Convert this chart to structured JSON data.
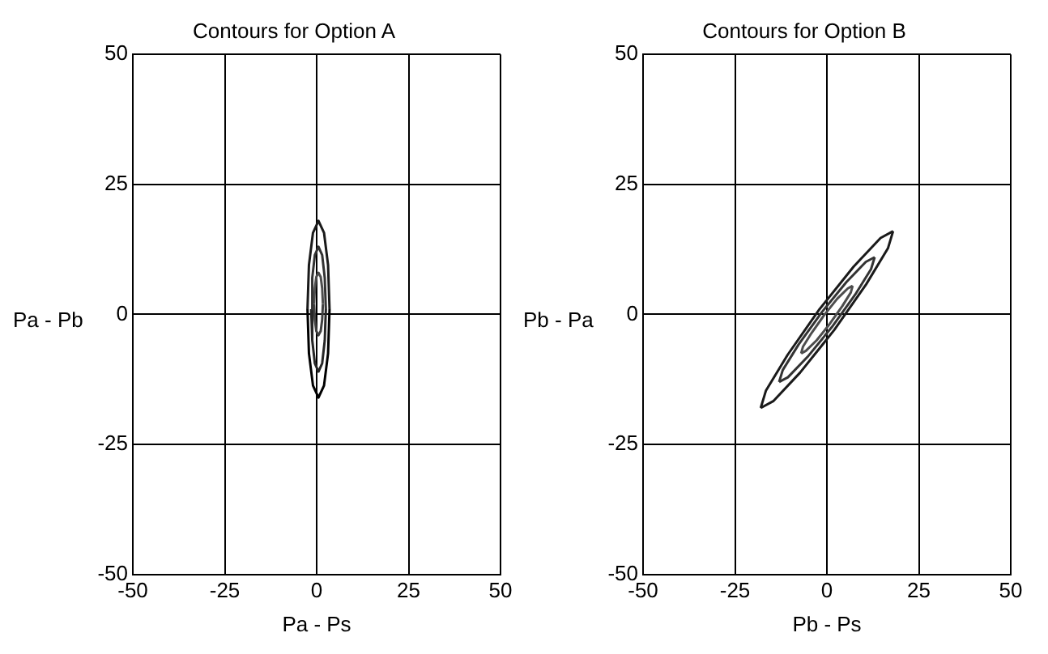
{
  "chart_data": [
    {
      "type": "line",
      "title": "Contours for Option A",
      "xlabel": "Pa - Ps",
      "ylabel": "Pa - Pb",
      "xlim": [
        -50,
        50
      ],
      "ylim": [
        -50,
        50
      ],
      "xticks": [
        -50,
        -25,
        0,
        25,
        50
      ],
      "yticks": [
        -50,
        -25,
        0,
        25,
        50
      ],
      "grid": true,
      "marker": "none",
      "line_style": "solid",
      "series": [
        {
          "color": "#1a1a1a",
          "x": [
            -2.5,
            -2.1,
            -1,
            0.5,
            2,
            3.1,
            3.5
          ],
          "values": [
            1,
            9.5,
            15.7,
            18,
            15.7,
            9.5,
            1
          ]
        },
        {
          "color": "#000000",
          "x": [
            -2.5,
            -2.1,
            -1,
            0.5,
            2,
            3.1,
            3.5
          ],
          "values": [
            1,
            -7.5,
            -13.7,
            -16,
            -13.7,
            -7.5,
            1
          ]
        },
        {
          "color": "#333333",
          "x": [
            -1.5,
            -1.2,
            -0.5,
            0.5,
            1.5,
            2.2,
            2.5
          ],
          "values": [
            1,
            7,
            11.4,
            13,
            11.4,
            7,
            1
          ]
        },
        {
          "color": "#262626",
          "x": [
            -1.5,
            -1.2,
            -0.5,
            0.5,
            1.5,
            2.2,
            2.5
          ],
          "values": [
            1,
            -5,
            -9.4,
            -11,
            -9.4,
            -5,
            1
          ]
        },
        {
          "color": "#4d4d4d",
          "x": [
            -0.7,
            -0.5,
            -0.1,
            0.5,
            1.1,
            1.5,
            1.7
          ],
          "values": [
            2,
            5,
            7.2,
            8,
            7.2,
            5,
            2
          ]
        },
        {
          "color": "#404040",
          "x": [
            -0.7,
            -0.5,
            -0.1,
            0.5,
            1.1,
            1.5,
            1.7
          ],
          "values": [
            2,
            -1,
            -3.2,
            -4,
            -3.2,
            -1,
            2
          ]
        }
      ]
    },
    {
      "type": "line",
      "title": "Contours for Option B",
      "xlabel": "Pb - Ps",
      "ylabel": "Pb - Pa",
      "xlim": [
        -50,
        50
      ],
      "ylim": [
        -50,
        50
      ],
      "xticks": [
        -50,
        -25,
        0,
        25,
        50
      ],
      "yticks": [
        -50,
        -25,
        0,
        25,
        50
      ],
      "grid": true,
      "marker": "none",
      "line_style": "solid",
      "series": [
        {
          "color": "#1a1a1a",
          "x": [
            -18,
            -16.6,
            -10.7,
            -2,
            7.3,
            14.6,
            18
          ],
          "values": [
            -18,
            -14.7,
            -7.8,
            1,
            9.2,
            14.7,
            16
          ]
        },
        {
          "color": "#1a1a1a",
          "x": [
            -18,
            -14.6,
            -7.3,
            2,
            10.7,
            16.6,
            18
          ],
          "values": [
            -18,
            -16.7,
            -11.2,
            -3,
            5.8,
            12.7,
            16
          ]
        },
        {
          "color": "#333333",
          "x": [
            -13,
            -12,
            -7.7,
            -1.4,
            5.3,
            10.6,
            13
          ],
          "values": [
            -13,
            -10.7,
            -5.8,
            0.4,
            6.2,
            10.1,
            11
          ]
        },
        {
          "color": "#333333",
          "x": [
            -13,
            -10.6,
            -5.3,
            1.4,
            7.7,
            12,
            13
          ],
          "values": [
            -13,
            -12.1,
            -8.2,
            -2.4,
            3.8,
            8.7,
            11
          ]
        },
        {
          "color": "#4d4d4d",
          "x": [
            -7,
            -6.5,
            -4.2,
            -0.8,
            2.8,
            5.7,
            7
          ],
          "values": [
            -7.5,
            -6.2,
            -3.6,
            -0.2,
            3,
            5,
            5.5
          ]
        },
        {
          "color": "#4d4d4d",
          "x": [
            -7,
            -5.7,
            -2.8,
            0.8,
            4.2,
            6.5,
            7
          ],
          "values": [
            -7.5,
            -7,
            -5,
            -1.8,
            1.6,
            4.2,
            5.5
          ]
        }
      ]
    }
  ]
}
